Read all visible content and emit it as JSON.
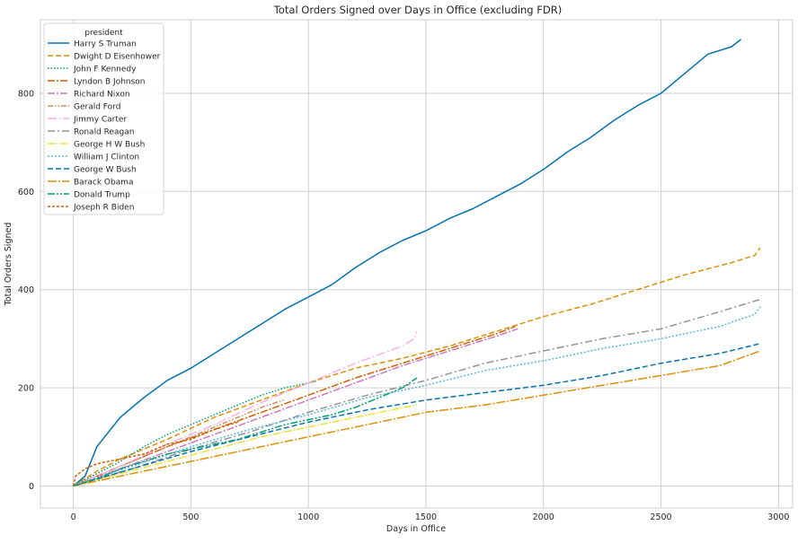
{
  "chart_data": {
    "type": "line",
    "title": "Total Orders Signed over Days in Office (excluding FDR)",
    "xlabel": "Days in Office",
    "ylabel": "Total Orders Signed",
    "xlim": [
      -140,
      3060
    ],
    "ylim": [
      -45,
      950
    ],
    "xticks": [
      0,
      500,
      1000,
      1500,
      2000,
      2500,
      3000
    ],
    "yticks": [
      0,
      200,
      400,
      600,
      800
    ],
    "grid": true,
    "legend": {
      "title": "president",
      "placement": "top-left"
    },
    "series": [
      {
        "name": "Harry S Truman",
        "color": "#0173b2",
        "dash": "solid",
        "x": [
          0,
          50,
          100,
          200,
          300,
          400,
          500,
          600,
          700,
          800,
          900,
          1000,
          1100,
          1200,
          1300,
          1400,
          1500,
          1600,
          1700,
          1800,
          1900,
          2000,
          2100,
          2200,
          2300,
          2400,
          2500,
          2600,
          2700,
          2800,
          2840
        ],
        "y": [
          0,
          20,
          80,
          140,
          180,
          215,
          240,
          270,
          300,
          330,
          360,
          385,
          410,
          445,
          475,
          500,
          520,
          545,
          565,
          590,
          615,
          645,
          680,
          710,
          745,
          775,
          800,
          840,
          880,
          895,
          910
        ]
      },
      {
        "name": "Dwight D Eisenhower",
        "color": "#de8f05",
        "dash": "6,3",
        "x": [
          0,
          100,
          200,
          400,
          600,
          800,
          1000,
          1200,
          1400,
          1600,
          1800,
          2000,
          2200,
          2400,
          2600,
          2800,
          2900,
          2922
        ],
        "y": [
          0,
          30,
          55,
          95,
          140,
          175,
          210,
          240,
          260,
          285,
          315,
          345,
          370,
          400,
          430,
          455,
          470,
          485
        ]
      },
      {
        "name": "John F Kennedy",
        "color": "#029e73",
        "dash": "1.5,2",
        "x": [
          0,
          100,
          200,
          300,
          400,
          500,
          600,
          700,
          800,
          900,
          1000,
          1036
        ],
        "y": [
          0,
          25,
          50,
          80,
          105,
          125,
          145,
          165,
          185,
          200,
          210,
          214
        ]
      },
      {
        "name": "Lyndon B Johnson",
        "color": "#d55e00",
        "dash": "8,2,2,2",
        "x": [
          0,
          200,
          400,
          600,
          800,
          1000,
          1200,
          1400,
          1600,
          1800,
          1880
        ],
        "y": [
          0,
          40,
          80,
          115,
          150,
          185,
          220,
          250,
          280,
          310,
          325
        ]
      },
      {
        "name": "Richard Nixon",
        "color": "#cc78bc",
        "dash": "8,2,2,2",
        "x": [
          0,
          200,
          400,
          600,
          800,
          1000,
          1200,
          1400,
          1600,
          1800,
          1890
        ],
        "y": [
          0,
          35,
          70,
          105,
          140,
          175,
          210,
          245,
          275,
          305,
          320
        ]
      },
      {
        "name": "Gerald Ford",
        "color": "#ca9161",
        "dash": "6,2,1.5,2,1.5,2",
        "x": [
          0,
          100,
          200,
          300,
          400,
          500,
          600,
          700,
          800,
          895
        ],
        "y": [
          0,
          20,
          40,
          60,
          80,
          100,
          120,
          140,
          160,
          175
        ]
      },
      {
        "name": "Jimmy Carter",
        "color": "#fbafe4",
        "dash": "10,3,1.5,3",
        "x": [
          0,
          200,
          400,
          600,
          800,
          1000,
          1200,
          1400,
          1450,
          1461
        ],
        "y": [
          0,
          40,
          85,
          125,
          170,
          210,
          250,
          285,
          300,
          315
        ]
      },
      {
        "name": "Ronald Reagan",
        "color": "#949494",
        "dash": "8,3,2,3",
        "x": [
          0,
          250,
          500,
          750,
          1000,
          1250,
          1500,
          1750,
          2000,
          2250,
          2500,
          2750,
          2922
        ],
        "y": [
          0,
          35,
          75,
          110,
          150,
          185,
          215,
          250,
          275,
          300,
          320,
          355,
          380
        ]
      },
      {
        "name": "George H W Bush",
        "color": "#ece133",
        "dash": "8,2,1.5,2",
        "x": [
          0,
          200,
          400,
          600,
          800,
          1000,
          1200,
          1461
        ],
        "y": [
          0,
          25,
          50,
          75,
          100,
          120,
          140,
          165
        ]
      },
      {
        "name": "William J Clinton",
        "color": "#56b4e9",
        "dash": "2,2",
        "x": [
          0,
          250,
          500,
          750,
          1000,
          1250,
          1500,
          1750,
          2000,
          2250,
          2500,
          2750,
          2900,
          2922
        ],
        "y": [
          0,
          40,
          80,
          115,
          145,
          180,
          205,
          235,
          255,
          280,
          300,
          325,
          350,
          365
        ]
      },
      {
        "name": "George W Bush",
        "color": "#0173b2",
        "dash": "6,3",
        "x": [
          0,
          250,
          500,
          750,
          1000,
          1250,
          1500,
          1750,
          2000,
          2250,
          2500,
          2750,
          2922
        ],
        "y": [
          0,
          35,
          70,
          100,
          130,
          155,
          175,
          190,
          205,
          225,
          250,
          270,
          290
        ]
      },
      {
        "name": "Barack Obama",
        "color": "#de8f05",
        "dash": "10,2,2,2",
        "x": [
          0,
          250,
          500,
          750,
          1000,
          1250,
          1500,
          1750,
          2000,
          2250,
          2500,
          2750,
          2922
        ],
        "y": [
          0,
          25,
          50,
          75,
          100,
          125,
          150,
          165,
          185,
          205,
          225,
          245,
          275
        ]
      },
      {
        "name": "Donald Trump",
        "color": "#029e73",
        "dash": "8,2,2,2,2,2",
        "x": [
          0,
          100,
          200,
          300,
          400,
          500,
          600,
          700,
          800,
          900,
          1000,
          1100,
          1200,
          1300,
          1400,
          1461
        ],
        "y": [
          0,
          15,
          35,
          50,
          65,
          75,
          85,
          95,
          110,
          125,
          135,
          145,
          160,
          180,
          200,
          220
        ]
      },
      {
        "name": "Joseph R Biden",
        "color": "#d55e00",
        "dash": "3,2",
        "x": [
          0,
          10,
          50,
          100,
          200,
          300,
          400,
          500,
          600,
          700
        ],
        "y": [
          0,
          20,
          35,
          45,
          55,
          65,
          85,
          95,
          115,
          130
        ]
      }
    ]
  }
}
